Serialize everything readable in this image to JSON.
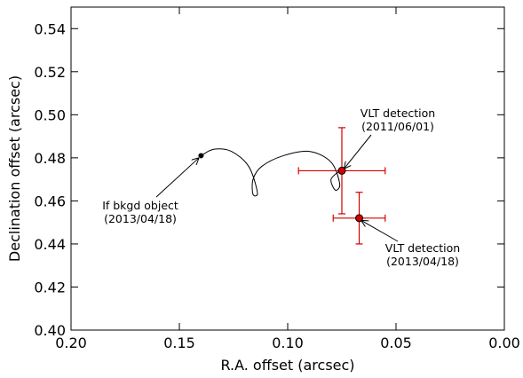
{
  "chart_data": {
    "type": "scatter",
    "xlabel": "R.A. offset (arcsec)",
    "ylabel": "Declination offset (arcsec)",
    "xlim": [
      0.2,
      0.0
    ],
    "ylim": [
      0.4,
      0.55
    ],
    "x_ticks": [
      "0.20",
      "0.15",
      "0.10",
      "0.05",
      "0.00"
    ],
    "y_ticks": [
      "0.40",
      "0.42",
      "0.44",
      "0.46",
      "0.48",
      "0.50",
      "0.52",
      "0.54"
    ],
    "grid": false,
    "colors": {
      "detection": "#d40000",
      "background_track": "#000000"
    },
    "background_track": {
      "start": [
        0.14,
        0.481
      ],
      "points": [
        [
          0.14,
          0.481
        ],
        [
          0.134,
          0.484
        ],
        [
          0.126,
          0.483
        ],
        [
          0.118,
          0.476
        ],
        [
          0.114,
          0.464
        ],
        [
          0.116,
          0.463
        ],
        [
          0.116,
          0.47
        ],
        [
          0.112,
          0.476
        ],
        [
          0.102,
          0.481
        ],
        [
          0.09,
          0.483
        ],
        [
          0.08,
          0.478
        ],
        [
          0.076,
          0.468
        ],
        [
          0.078,
          0.465
        ],
        [
          0.08,
          0.47
        ],
        [
          0.076,
          0.474
        ]
      ]
    },
    "detections": [
      {
        "date": "2011/06/01",
        "x": 0.075,
        "y": 0.474,
        "xerr": 0.02,
        "yerr": 0.02
      },
      {
        "date": "2013/04/18",
        "x": 0.067,
        "y": 0.452,
        "xerr": 0.012,
        "yerr": 0.012
      }
    ],
    "annotations": [
      {
        "id": "vlt1",
        "lines": [
          "VLT detection",
          "(2011/06/01)"
        ]
      },
      {
        "id": "bkgd",
        "lines": [
          "If bkgd object",
          "(2013/04/18)"
        ]
      },
      {
        "id": "vlt2",
        "lines": [
          "VLT detection",
          "(2013/04/18)"
        ]
      }
    ]
  }
}
